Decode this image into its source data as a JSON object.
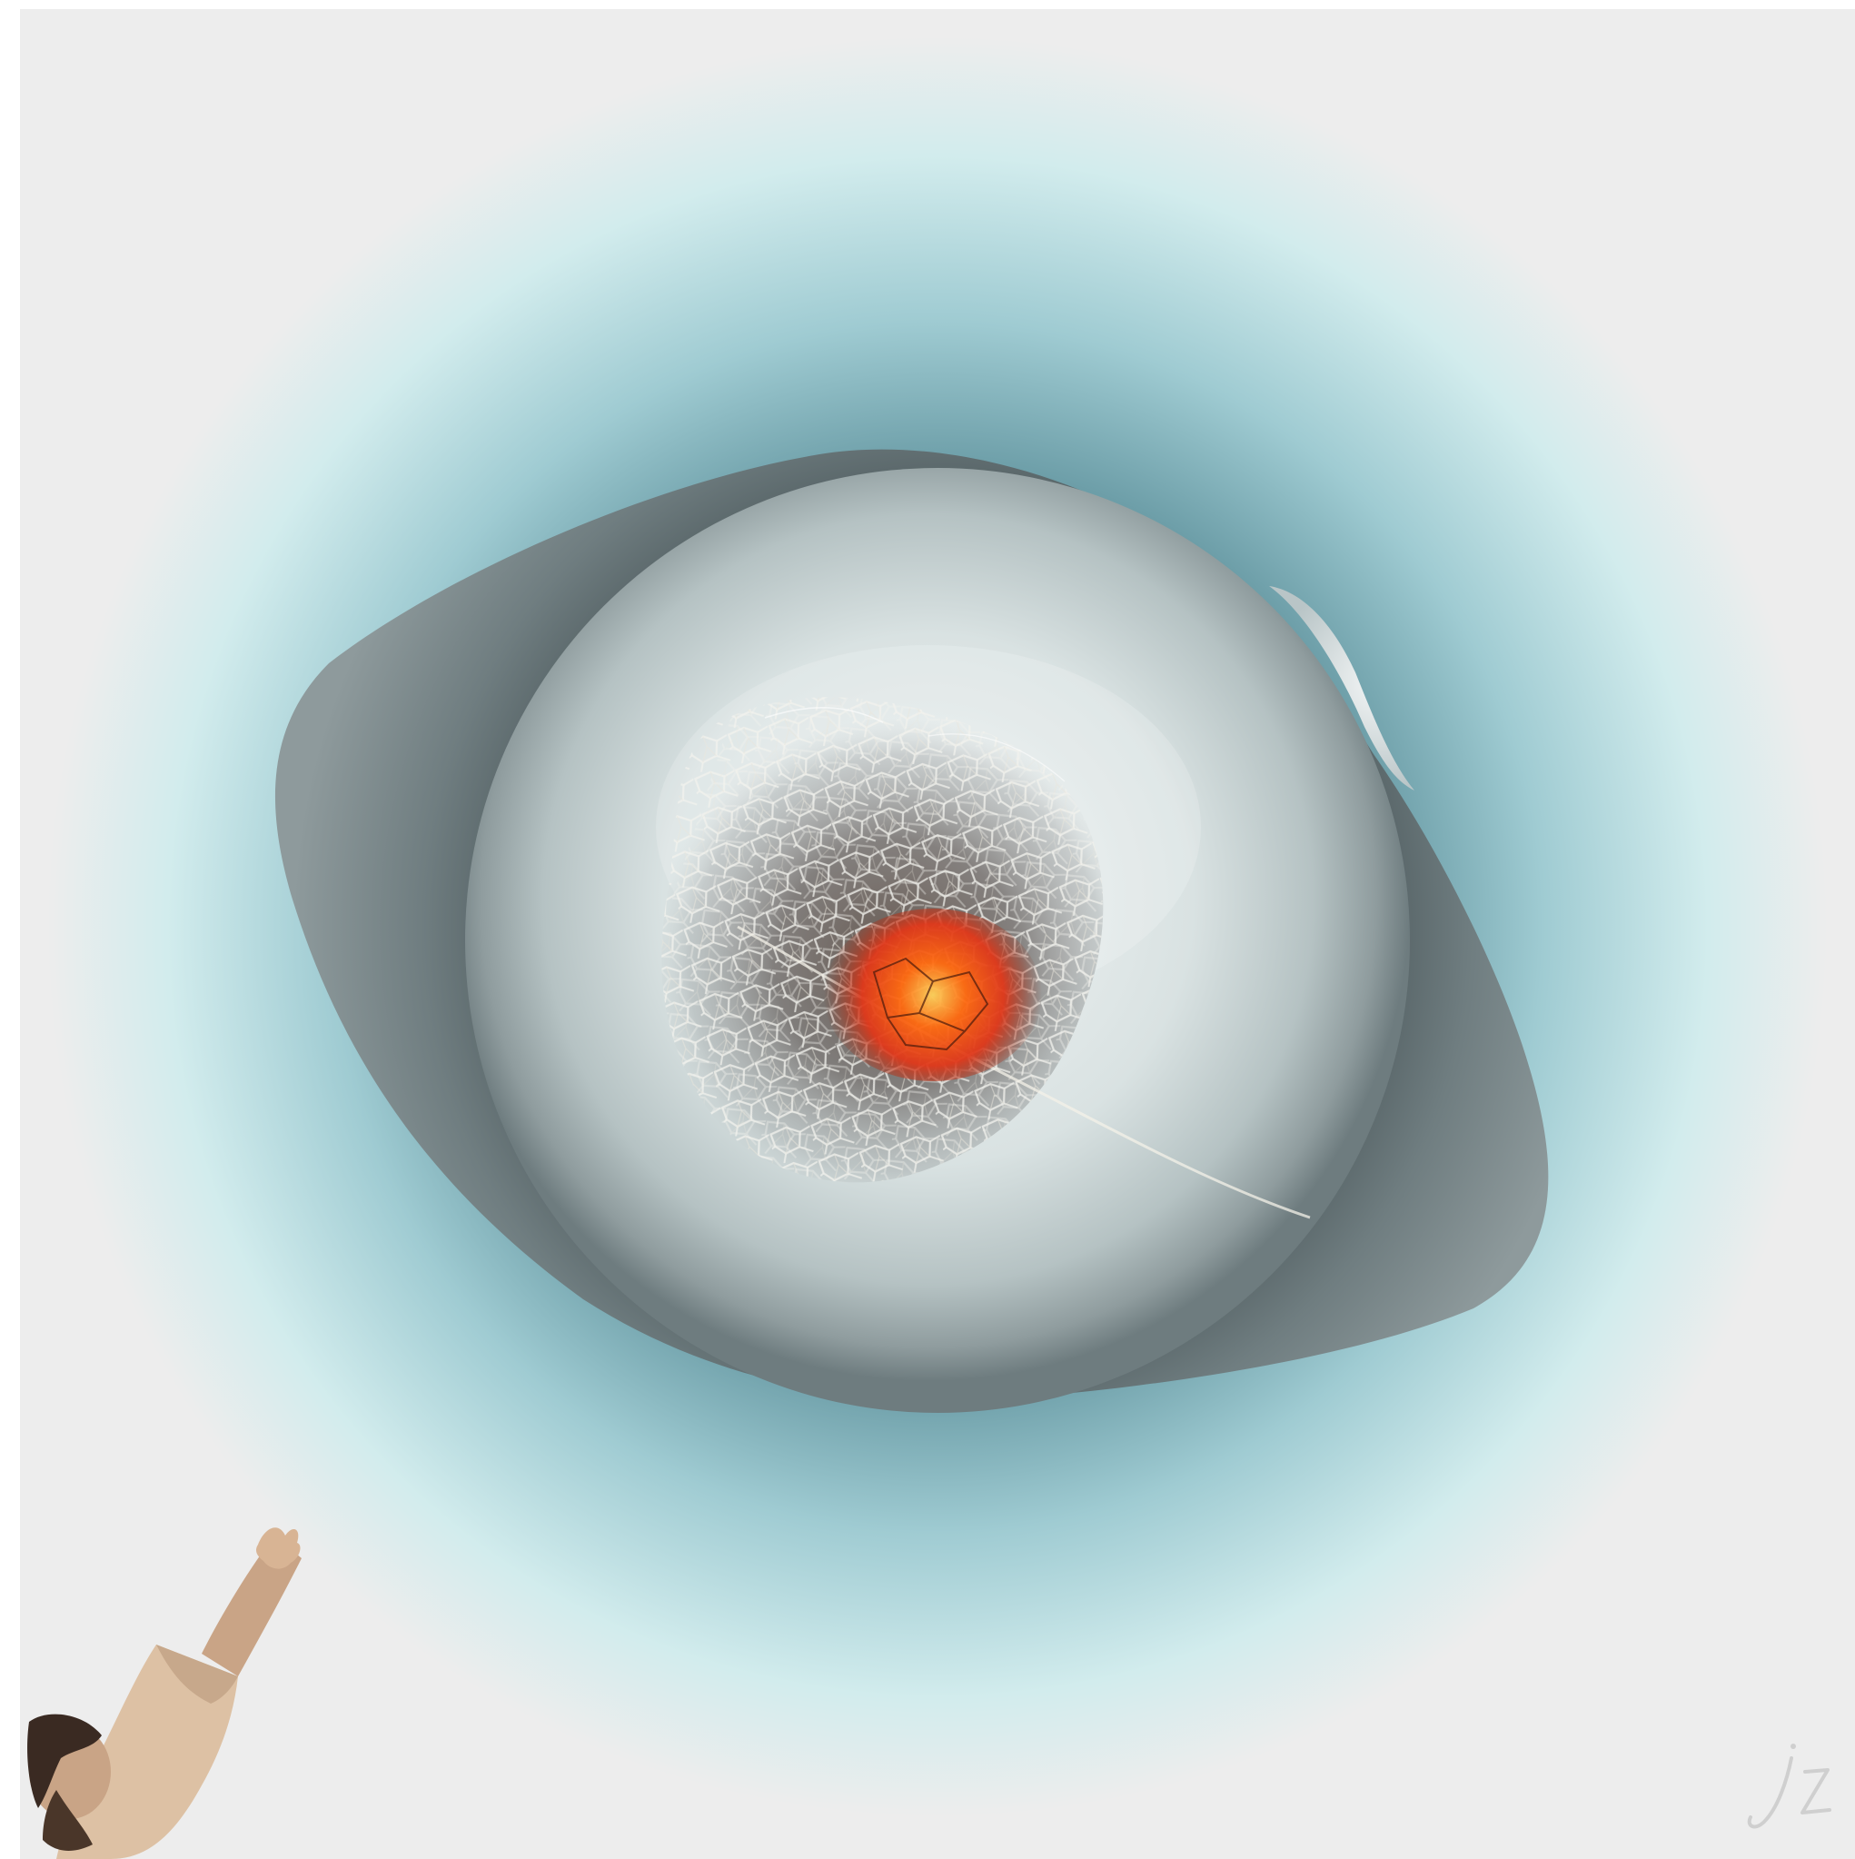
{
  "artwork": {
    "kind": "digital collage",
    "signature": "jz",
    "colors": {
      "background": "#ededed",
      "halo_outer": "#d2eced",
      "halo_mid": "#9fcbd2",
      "halo_inner": "#5c8f9a",
      "shell_dark": "#3f4b4e",
      "shell_light": "#8e9a9c",
      "sphere_light": "#e3eaea",
      "sphere_edge": "#7f8d90",
      "veins": "#f2f2ee",
      "glow_core": "#ff6a10",
      "glow_mid": "#e0381a",
      "skin": "#d8b494",
      "hair": "#3a2a22"
    },
    "elements": [
      "halo-glow",
      "outer-shell",
      "sphere",
      "leaf-skeleton-cage",
      "ember-core",
      "reaching-figure",
      "signature-mark"
    ]
  }
}
